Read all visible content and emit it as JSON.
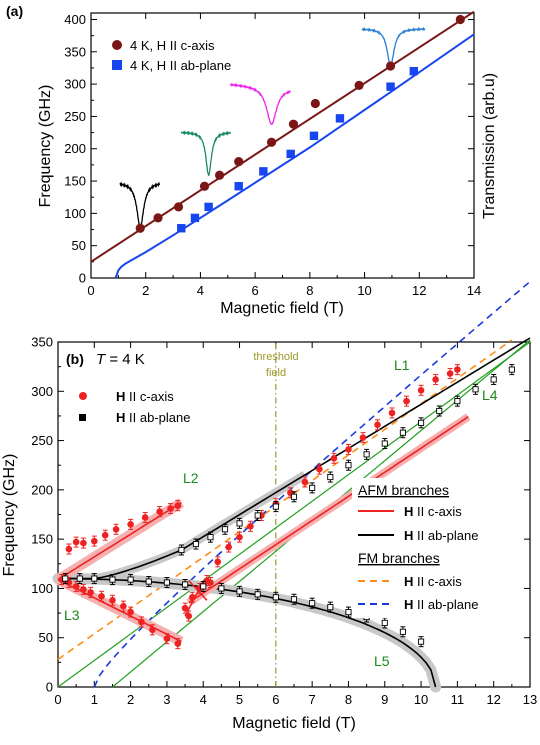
{
  "chart_data": [
    {
      "panel_label": "(a)",
      "type": "scatter",
      "xlabel": "Magnetic field (T)",
      "ylabel": "Frequency (GHz)",
      "y2label": "Transmission (arb.u)",
      "xlim": [
        0,
        14
      ],
      "ylim": [
        0,
        410
      ],
      "xticks": [
        "0",
        "2",
        "4",
        "6",
        "8",
        "10",
        "12",
        "14"
      ],
      "yticks": [
        "0",
        "50",
        "100",
        "150",
        "200",
        "250",
        "300",
        "350",
        "400"
      ],
      "legend_position": "top-left",
      "colors": {
        "c_axis": "#7b1616",
        "ab_plane": "#1745f0"
      },
      "series": [
        {
          "name": "4 K, H II c-axis",
          "marker": "circle",
          "x": [
            1.8,
            2.45,
            3.2,
            4.15,
            4.7,
            5.4,
            6.6,
            7.4,
            8.2,
            9.8,
            10.95,
            13.5
          ],
          "y": [
            77,
            93,
            110,
            142,
            159,
            180,
            210,
            238,
            270,
            298,
            328,
            400
          ]
        },
        {
          "name": "4 K, H II ab-plane",
          "marker": "square",
          "x": [
            3.3,
            3.8,
            4.3,
            5.4,
            6.3,
            7.3,
            8.15,
            9.1,
            10.95,
            11.8
          ],
          "y": [
            77,
            93,
            110,
            142,
            165,
            192,
            220,
            247,
            296,
            320
          ]
        }
      ],
      "fit_lines": [
        {
          "series": "c-axis fit",
          "x": [
            0,
            14
          ],
          "y": [
            25,
            412
          ]
        },
        {
          "series": "ab-plane fit",
          "x": [
            0.9,
            1.0,
            1.1,
            1.25,
            1.5,
            2.0,
            3.0,
            5.0,
            8.0,
            11.0,
            14.0
          ],
          "y": [
            0,
            12,
            17,
            22,
            28,
            40,
            66,
            120,
            202,
            289,
            377
          ]
        }
      ],
      "spectra_insets": [
        {
          "color": "#000000",
          "x_center": 1.8,
          "dip": 77
        },
        {
          "color": "#1a8a6a",
          "x_center": 4.3,
          "dip": 159
        },
        {
          "color": "#ee22ee",
          "x_center": 6.6,
          "dip": 238
        },
        {
          "color": "#2a7fd4",
          "x_center": 10.95,
          "dip": 328
        }
      ]
    },
    {
      "panel_label": "(b)",
      "type": "scatter",
      "title_T": "T",
      "title_rest": " = 4 K",
      "xlabel": "Magnetic field (T)",
      "ylabel": "Frequency (GHz)",
      "xlim": [
        0,
        13
      ],
      "ylim": [
        0,
        350
      ],
      "xticks": [
        "0",
        "1",
        "2",
        "3",
        "4",
        "5",
        "6",
        "7",
        "8",
        "9",
        "10",
        "11",
        "12",
        "13"
      ],
      "yticks": [
        "0",
        "50",
        "100",
        "150",
        "200",
        "250",
        "300",
        "350"
      ],
      "threshold": {
        "x": 6,
        "label_line1": "threshold",
        "label_line2": "field",
        "color": "#9a9a2a"
      },
      "line_labels": [
        "L1",
        "L2",
        "L3",
        "L4",
        "L5"
      ],
      "legend_top": [
        {
          "bold": "H",
          "text": " II c-axis",
          "marker": "circle",
          "color": "#ee2222"
        },
        {
          "bold": "H",
          "text": " II ab-plane",
          "marker": "square",
          "color": "#000000"
        }
      ],
      "legend_branches": {
        "afm_title": "AFM branches",
        "fm_title": "FM branches",
        "afm": [
          {
            "bold": "H",
            "text": " II c-axis",
            "color": "#ee2222",
            "dash": "solid"
          },
          {
            "bold": "H",
            "text": " II ab-plane",
            "color": "#000000",
            "dash": "solid"
          }
        ],
        "fm": [
          {
            "bold": "H",
            "text": " II c-axis",
            "color": "#ff8c1a",
            "dash": "dashed"
          },
          {
            "bold": "H",
            "text": " II ab-plane",
            "color": "#1a3adf",
            "dash": "dashed"
          }
        ]
      },
      "series": [
        {
          "name": "H II c-axis",
          "marker": "circle",
          "color": "#ee2222",
          "x": [
            0.1,
            0.3,
            0.5,
            0.7,
            0.9,
            1.2,
            1.5,
            1.8,
            2.0,
            2.3,
            2.6,
            3.0,
            3.3,
            0.3,
            0.5,
            0.7,
            1.0,
            1.3,
            1.6,
            2.0,
            2.4,
            2.8,
            3.1,
            3.3,
            3.7,
            3.9,
            4.1,
            4.4,
            4.7,
            5.0,
            5.3,
            5.6,
            6.0,
            6.4,
            6.8,
            7.2,
            7.6,
            8.0,
            8.4,
            8.8,
            9.2,
            9.6,
            10.0,
            10.4,
            10.8,
            11.0,
            3.5,
            3.6,
            4.2
          ],
          "y": [
            109,
            106,
            102,
            99,
            96,
            92,
            88,
            82,
            76,
            66,
            58,
            49,
            44,
            140,
            147,
            146,
            148,
            154,
            160,
            165,
            172,
            178,
            181,
            184,
            91,
            100,
            108,
            127,
            142,
            152,
            163,
            174,
            186,
            197,
            208,
            221,
            232,
            241,
            253,
            266,
            278,
            290,
            301,
            312,
            318,
            322,
            80,
            72,
            106
          ]
        },
        {
          "name": "H II ab-plane",
          "marker": "square",
          "color": "#000000",
          "x": [
            0.2,
            0.6,
            1.0,
            1.5,
            2.0,
            2.5,
            3.0,
            3.5,
            4.0,
            4.5,
            5.0,
            5.5,
            6.0,
            6.5,
            7.0,
            7.5,
            8.0,
            8.5,
            9.0,
            9.5,
            10.0,
            3.4,
            3.8,
            4.2,
            4.6,
            5.0,
            5.5,
            6.0,
            6.5,
            7.0,
            7.5,
            8.0,
            8.5,
            9.0,
            9.5,
            10.0,
            10.5,
            11.0,
            11.5,
            12.0,
            12.5
          ],
          "y": [
            110,
            110,
            110,
            109,
            109,
            107,
            106,
            104,
            102,
            100,
            97,
            94,
            91,
            89,
            85,
            81,
            76,
            71,
            65,
            56,
            46,
            139,
            145,
            152,
            160,
            166,
            174,
            183,
            193,
            202,
            213,
            225,
            236,
            247,
            258,
            268,
            280,
            290,
            302,
            312,
            322
          ]
        }
      ]
    }
  ]
}
